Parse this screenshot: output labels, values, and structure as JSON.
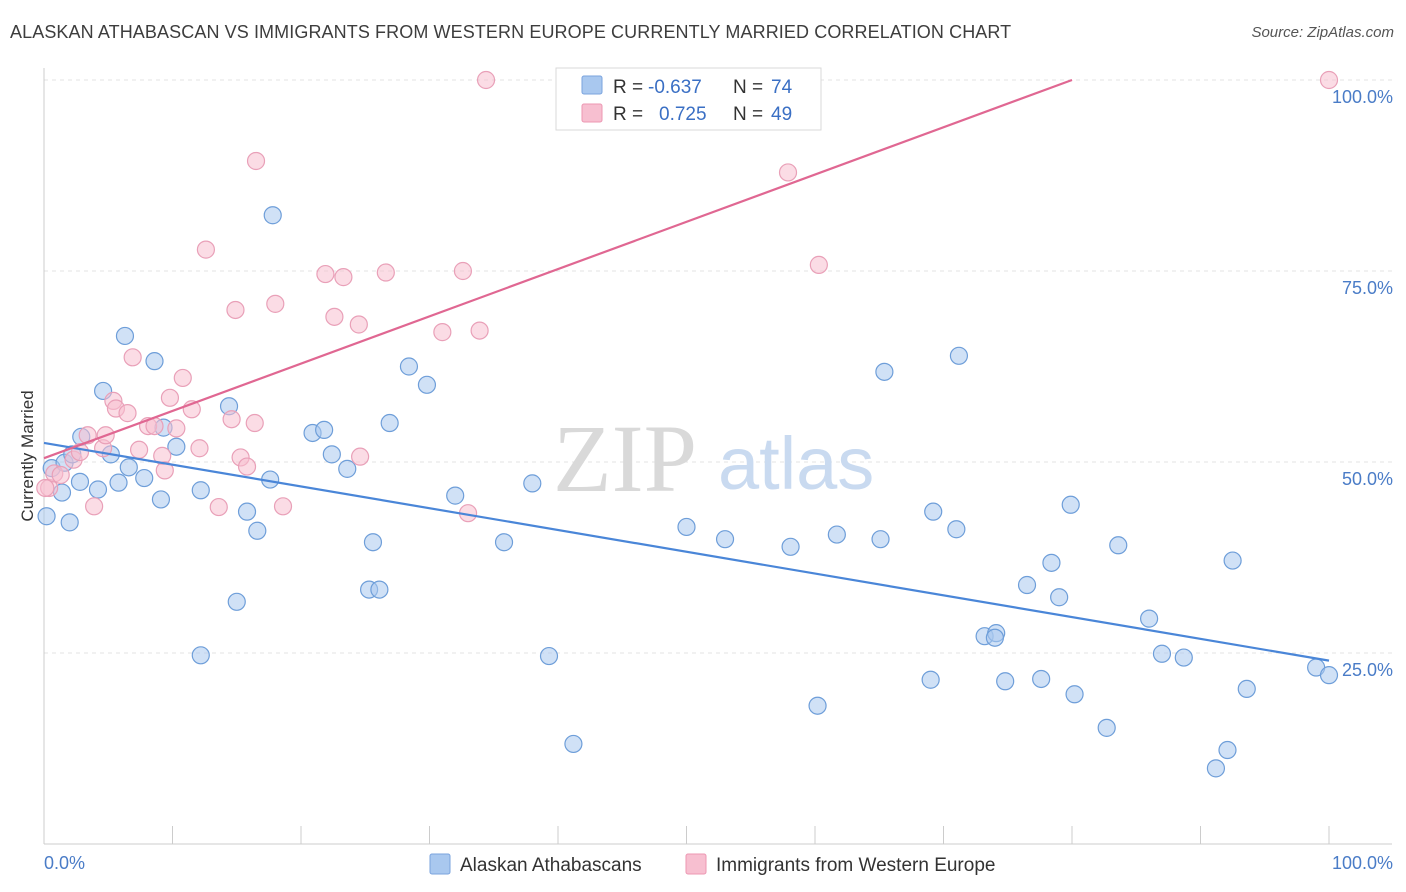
{
  "title": "ALASKAN ATHABASCAN VS IMMIGRANTS FROM WESTERN EUROPE CURRENTLY MARRIED CORRELATION CHART",
  "source": "Source: ZipAtlas.com",
  "watermark": {
    "part1": "ZIP",
    "part2": "atlas"
  },
  "legend": {
    "r_label": "R =",
    "n_label": "N =",
    "rows": [
      {
        "r": "-0.637",
        "n": "74",
        "color": "#a9c8ef",
        "stroke": "#7aa3de"
      },
      {
        "r": "0.725",
        "n": "49",
        "color": "#f7bfd0",
        "stroke": "#ec97b2"
      }
    ]
  },
  "bottom_legend": [
    {
      "label": "Alaskan Athabascans",
      "color": "#a9c8ef",
      "stroke": "#7aa3de"
    },
    {
      "label": "Immigrants from Western Europe",
      "color": "#f7bfd0",
      "stroke": "#ec97b2"
    }
  ],
  "chart_data": {
    "type": "scatter",
    "title": "ALASKAN ATHABASCAN VS IMMIGRANTS FROM WESTERN EUROPE CURRENTLY MARRIED CORRELATION CHART",
    "xlabel": "",
    "ylabel": "Currently Married",
    "xlim": [
      0,
      100
    ],
    "ylim": [
      0,
      100
    ],
    "x_tick_labels": [
      "0.0%",
      "100.0%"
    ],
    "y_tick_labels": [
      "25.0%",
      "50.0%",
      "75.0%",
      "100.0%"
    ],
    "y_ticks": [
      25,
      50,
      75,
      100
    ],
    "grid": true,
    "legend_position": "top-center",
    "series": [
      {
        "name": "Alaskan Athabascans",
        "color": "#4a86d8",
        "fill": "#a9c8ef",
        "trend": {
          "x": [
            0,
            100
          ],
          "y": [
            52.5,
            24.0
          ]
        },
        "points": [
          [
            0.2,
            42.9
          ],
          [
            0.6,
            49.2
          ],
          [
            1.4,
            46.0
          ],
          [
            1.6,
            49.9
          ],
          [
            2.0,
            42.1
          ],
          [
            2.2,
            51.0
          ],
          [
            2.8,
            47.4
          ],
          [
            2.9,
            53.3
          ],
          [
            4.2,
            46.4
          ],
          [
            4.6,
            59.3
          ],
          [
            5.2,
            51.0
          ],
          [
            5.8,
            47.3
          ],
          [
            6.3,
            66.5
          ],
          [
            6.6,
            49.3
          ],
          [
            7.8,
            47.9
          ],
          [
            8.6,
            63.2
          ],
          [
            9.1,
            45.1
          ],
          [
            9.3,
            54.5
          ],
          [
            10.3,
            52.0
          ],
          [
            12.2,
            24.7
          ],
          [
            12.2,
            46.3
          ],
          [
            14.4,
            57.3
          ],
          [
            15.0,
            31.7
          ],
          [
            15.8,
            43.5
          ],
          [
            16.6,
            41.0
          ],
          [
            17.6,
            47.7
          ],
          [
            17.8,
            82.3
          ],
          [
            20.9,
            53.8
          ],
          [
            21.8,
            54.2
          ],
          [
            22.4,
            51.0
          ],
          [
            23.6,
            49.1
          ],
          [
            25.3,
            33.3
          ],
          [
            25.6,
            39.5
          ],
          [
            26.1,
            33.3
          ],
          [
            26.9,
            55.1
          ],
          [
            28.4,
            62.5
          ],
          [
            29.8,
            60.1
          ],
          [
            32.0,
            45.6
          ],
          [
            35.8,
            39.5
          ],
          [
            38.0,
            47.2
          ],
          [
            39.3,
            24.6
          ],
          [
            41.2,
            13.1
          ],
          [
            50.0,
            41.5
          ],
          [
            53.0,
            39.9
          ],
          [
            58.1,
            38.9
          ],
          [
            60.2,
            18.1
          ],
          [
            61.7,
            40.5
          ],
          [
            65.1,
            39.9
          ],
          [
            65.4,
            61.8
          ],
          [
            69.0,
            21.5
          ],
          [
            69.2,
            43.5
          ],
          [
            71.0,
            41.2
          ],
          [
            71.2,
            63.9
          ],
          [
            73.2,
            27.2
          ],
          [
            74.1,
            27.6
          ],
          [
            74.0,
            27.0
          ],
          [
            74.8,
            21.3
          ],
          [
            76.5,
            33.9
          ],
          [
            77.6,
            21.6
          ],
          [
            78.4,
            36.8
          ],
          [
            79.0,
            32.3
          ],
          [
            79.9,
            44.4
          ],
          [
            80.2,
            19.6
          ],
          [
            82.7,
            15.2
          ],
          [
            83.6,
            39.1
          ],
          [
            86.0,
            29.5
          ],
          [
            87.0,
            24.9
          ],
          [
            88.7,
            24.4
          ],
          [
            91.2,
            9.9
          ],
          [
            92.1,
            12.3
          ],
          [
            92.5,
            37.1
          ],
          [
            93.6,
            20.3
          ],
          [
            99.0,
            23.1
          ],
          [
            100.0,
            22.1
          ]
        ]
      },
      {
        "name": "Immigrants from Western Europe",
        "color": "#e06792",
        "fill": "#f7bfd0",
        "trend": {
          "x": [
            0,
            80
          ],
          "y": [
            50.5,
            100.0
          ]
        },
        "points": [
          [
            0.4,
            46.6
          ],
          [
            0.8,
            48.5
          ],
          [
            1.3,
            48.3
          ],
          [
            2.3,
            50.3
          ],
          [
            2.8,
            51.3
          ],
          [
            3.4,
            53.5
          ],
          [
            3.9,
            44.2
          ],
          [
            4.6,
            51.8
          ],
          [
            4.8,
            53.5
          ],
          [
            5.4,
            58.0
          ],
          [
            5.6,
            57.0
          ],
          [
            6.5,
            56.4
          ],
          [
            6.9,
            63.7
          ],
          [
            7.4,
            51.6
          ],
          [
            8.1,
            54.7
          ],
          [
            8.6,
            54.7
          ],
          [
            9.2,
            50.8
          ],
          [
            9.4,
            48.9
          ],
          [
            9.8,
            58.4
          ],
          [
            10.3,
            54.4
          ],
          [
            10.8,
            61.0
          ],
          [
            11.5,
            56.9
          ],
          [
            12.1,
            51.8
          ],
          [
            12.6,
            77.8
          ],
          [
            13.6,
            44.1
          ],
          [
            14.6,
            55.6
          ],
          [
            14.9,
            69.9
          ],
          [
            15.3,
            50.6
          ],
          [
            15.8,
            49.4
          ],
          [
            16.4,
            55.1
          ],
          [
            16.5,
            89.4
          ],
          [
            18.0,
            70.7
          ],
          [
            18.6,
            44.2
          ],
          [
            21.9,
            74.6
          ],
          [
            22.6,
            69.0
          ],
          [
            23.3,
            74.2
          ],
          [
            24.5,
            68.0
          ],
          [
            24.6,
            50.7
          ],
          [
            26.6,
            74.8
          ],
          [
            31.0,
            67.0
          ],
          [
            32.6,
            75.0
          ],
          [
            33.0,
            43.3
          ],
          [
            33.9,
            67.2
          ],
          [
            34.4,
            100.0
          ],
          [
            47.4,
            100.2
          ],
          [
            57.9,
            87.9
          ],
          [
            60.3,
            75.8
          ],
          [
            100.0,
            100.0
          ],
          [
            0.1,
            46.6
          ]
        ]
      }
    ]
  }
}
